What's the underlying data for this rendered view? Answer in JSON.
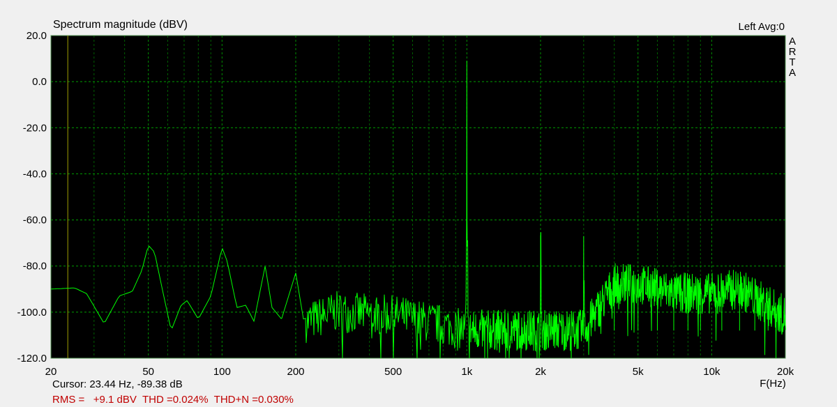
{
  "chart_data": {
    "type": "line",
    "title": "Spectrum magnitude (dBV)",
    "xlabel": "F(Hz)",
    "ylabel": "",
    "xscale": "log",
    "xlim": [
      20,
      20000
    ],
    "ylim": [
      -120,
      20
    ],
    "yticks": [
      "20.0",
      "0.0",
      "-20.0",
      "-40.0",
      "-60.0",
      "-80.0",
      "-100.0",
      "-120.0"
    ],
    "xticks": [
      {
        "v": 20,
        "l": "20"
      },
      {
        "v": 50,
        "l": "50"
      },
      {
        "v": 100,
        "l": "100"
      },
      {
        "v": 200,
        "l": "200"
      },
      {
        "v": 500,
        "l": "500"
      },
      {
        "v": 1000,
        "l": "1k"
      },
      {
        "v": 2000,
        "l": "2k"
      },
      {
        "v": 5000,
        "l": "5k"
      },
      {
        "v": 10000,
        "l": "10k"
      },
      {
        "v": 20000,
        "l": "20k"
      }
    ],
    "grid": true,
    "cursor_hz": 23.44,
    "series": [
      {
        "color": "#00ff00",
        "points": [
          [
            20,
            -90
          ],
          [
            25,
            -89.5
          ],
          [
            28,
            -92
          ],
          [
            33,
            -105
          ],
          [
            38,
            -93
          ],
          [
            43,
            -91
          ],
          [
            47,
            -82
          ],
          [
            50,
            -71
          ],
          [
            53,
            -74
          ],
          [
            57,
            -90
          ],
          [
            62,
            -108
          ],
          [
            68,
            -97
          ],
          [
            72,
            -95
          ],
          [
            80,
            -103
          ],
          [
            90,
            -93
          ],
          [
            100,
            -72
          ],
          [
            105,
            -78
          ],
          [
            115,
            -98
          ],
          [
            125,
            -97
          ],
          [
            135,
            -104
          ],
          [
            150,
            -80
          ],
          [
            160,
            -98
          ],
          [
            175,
            -103
          ],
          [
            200,
            -83
          ],
          [
            215,
            -103
          ],
          [
            290,
            -98
          ],
          [
            540,
            -100
          ],
          [
            990,
            -106
          ],
          [
            998,
            -60
          ],
          [
            1000,
            9
          ],
          [
            1002,
            -60
          ],
          [
            1010,
            -106
          ],
          [
            1990,
            -106
          ],
          [
            2000,
            -67
          ],
          [
            2010,
            -106
          ],
          [
            2990,
            -106
          ],
          [
            3000,
            -67
          ],
          [
            3010,
            -106
          ],
          [
            4000,
            -86
          ],
          [
            5000,
            -86
          ],
          [
            6000,
            -88
          ],
          [
            7000,
            -90
          ],
          [
            10000,
            -90
          ],
          [
            13000,
            -88
          ],
          [
            20000,
            -100
          ]
        ]
      }
    ],
    "colors": {
      "background": "#000000",
      "grid": "#00a000",
      "trace": "#00ff00",
      "cursor": "#a0a000"
    }
  },
  "header": {
    "channel": "Left  Avg:0",
    "logo": "ARTA"
  },
  "footer": {
    "cursor": "Cursor: 23.44 Hz, -89.38 dB",
    "stats": "RMS =   +9.1 dBV  THD =0.024%  THD+N =0.030%"
  }
}
